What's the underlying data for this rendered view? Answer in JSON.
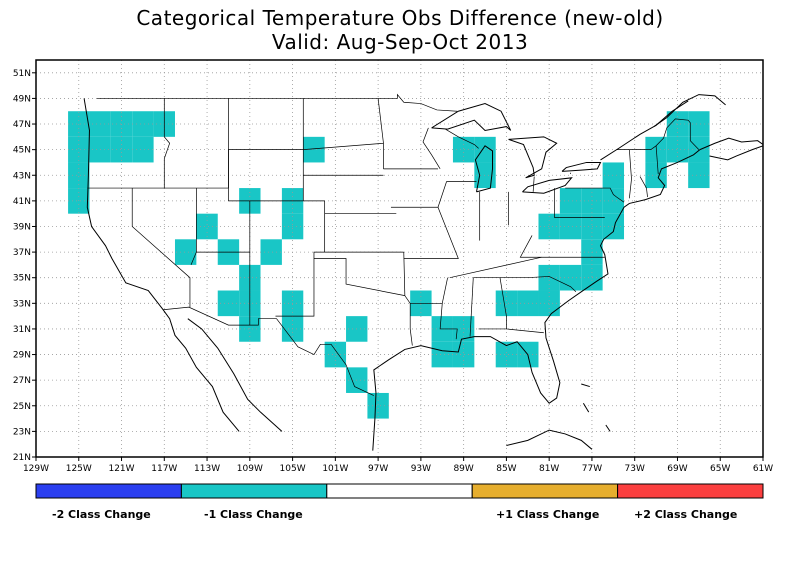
{
  "title_line1": "Categorical Temperature Obs Difference (new-old)",
  "title_line2": "Valid: Aug-Sep-Oct 2013",
  "lat_labels": [
    "51N",
    "49N",
    "47N",
    "45N",
    "43N",
    "41N",
    "39N",
    "37N",
    "35N",
    "33N",
    "31N",
    "29N",
    "27N",
    "25N",
    "23N",
    "21N"
  ],
  "lat_values": [
    51,
    49,
    47,
    45,
    43,
    41,
    39,
    37,
    35,
    33,
    31,
    29,
    27,
    25,
    23,
    21
  ],
  "lon_labels": [
    "129W",
    "125W",
    "121W",
    "117W",
    "113W",
    "109W",
    "105W",
    "101W",
    "97W",
    "93W",
    "89W",
    "85W",
    "81W",
    "77W",
    "73W",
    "69W",
    "65W",
    "61W"
  ],
  "lon_values": [
    -129,
    -125,
    -121,
    -117,
    -113,
    -109,
    -105,
    -101,
    -97,
    -93,
    -89,
    -85,
    -81,
    -77,
    -73,
    -69,
    -65,
    -61
  ],
  "legend": {
    "segments": [
      {
        "label": "-2 Class Change",
        "color": "#2b3ff0"
      },
      {
        "label": "-1 Class Change",
        "color": "#19c6c6"
      },
      {
        "label": "",
        "color": "#ffffff"
      },
      {
        "label": "+1 Class Change",
        "color": "#e6ae2e"
      },
      {
        "label": "+2 Class Change",
        "color": "#fb3f3f"
      }
    ]
  },
  "map_data": {
    "bounds": {
      "lon_min": -129,
      "lon_max": -61,
      "lat_min": 21,
      "lat_max": 52
    },
    "cell_deg": 2,
    "cells_minus1": [
      [
        -125,
        41
      ],
      [
        -125,
        43
      ],
      [
        -125,
        45
      ],
      [
        -125,
        47
      ],
      [
        -123,
        47
      ],
      [
        -121,
        47
      ],
      [
        -119,
        47
      ],
      [
        -117,
        47
      ],
      [
        -123,
        45
      ],
      [
        -121,
        45
      ],
      [
        -119,
        45
      ],
      [
        -103,
        45
      ],
      [
        -109,
        41
      ],
      [
        -105,
        41
      ],
      [
        -113,
        39
      ],
      [
        -105,
        39
      ],
      [
        -115,
        37
      ],
      [
        -111,
        37
      ],
      [
        -107,
        37
      ],
      [
        -109,
        35
      ],
      [
        -111,
        33
      ],
      [
        -109,
        33
      ],
      [
        -105,
        33
      ],
      [
        -109,
        31
      ],
      [
        -105,
        31
      ],
      [
        -99,
        31
      ],
      [
        -101,
        29
      ],
      [
        -99,
        27
      ],
      [
        -97,
        25
      ],
      [
        -91,
        31
      ],
      [
        -89,
        31
      ],
      [
        -91,
        29
      ],
      [
        -89,
        29
      ],
      [
        -93,
        33
      ],
      [
        -85,
        33
      ],
      [
        -83,
        33
      ],
      [
        -81,
        33
      ],
      [
        -85,
        29
      ],
      [
        -83,
        29
      ],
      [
        -81,
        35
      ],
      [
        -79,
        35
      ],
      [
        -77,
        35
      ],
      [
        -89,
        45
      ],
      [
        -87,
        45
      ],
      [
        -87,
        43
      ],
      [
        -79,
        41
      ],
      [
        -77,
        41
      ],
      [
        -75,
        41
      ],
      [
        -81,
        39
      ],
      [
        -79,
        39
      ],
      [
        -77,
        39
      ],
      [
        -75,
        39
      ],
      [
        -77,
        37
      ],
      [
        -75,
        43
      ],
      [
        -71,
        43
      ],
      [
        -69,
        45
      ],
      [
        -67,
        45
      ],
      [
        -69,
        47
      ],
      [
        -67,
        47
      ],
      [
        -71,
        45
      ],
      [
        -67,
        43
      ]
    ],
    "cell_color": "#19c6c6"
  }
}
